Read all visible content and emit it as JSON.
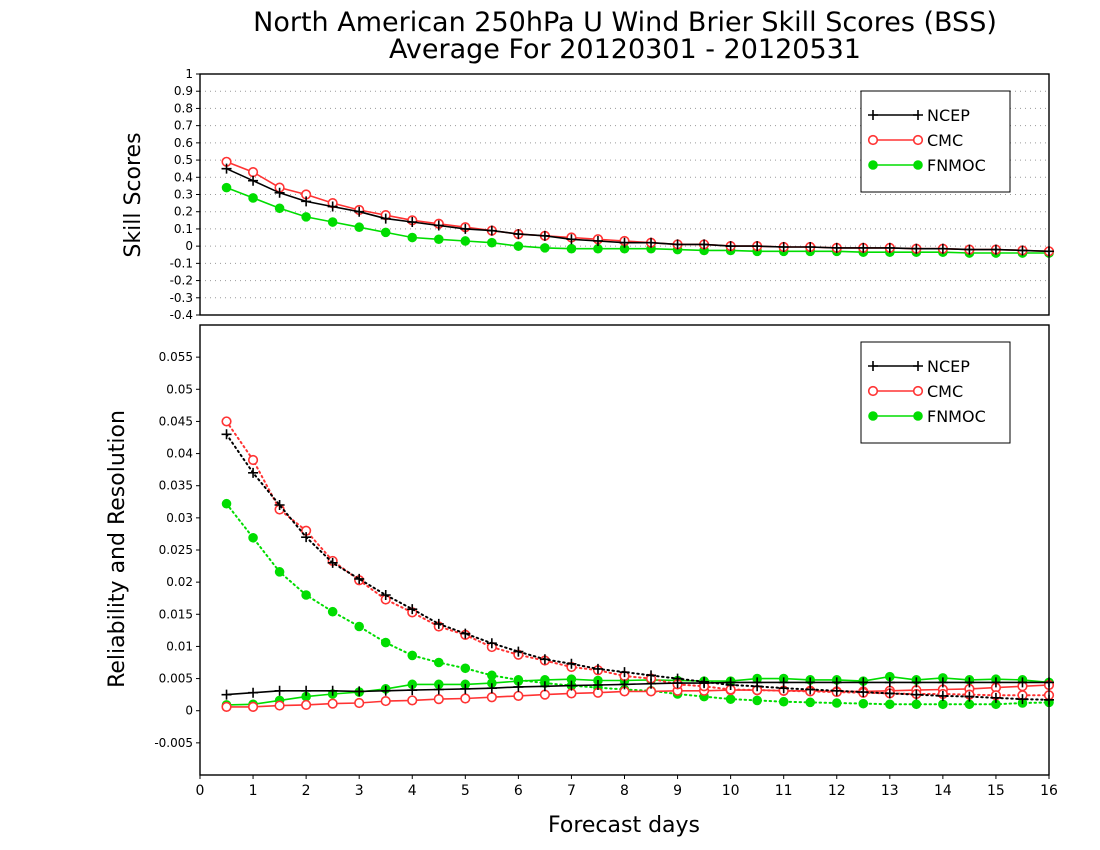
{
  "chart_data": {
    "title": "North American 250hPa U Wind Brier Skill Scores (BSS)",
    "subtitle": "Average For 20120301 - 20120531",
    "xlabel": "Forecast days",
    "x_ticks": [
      "0",
      "1",
      "2",
      "3",
      "4",
      "5",
      "6",
      "7",
      "8",
      "9",
      "10",
      "11",
      "12",
      "13",
      "14",
      "15",
      "16"
    ],
    "xlim": [
      0,
      16
    ],
    "colors": {
      "NCEP": "#000000",
      "CMC": "#ff3333",
      "FNMOC": "#00dd00",
      "CMC_marker_fill": "#ffffff"
    },
    "panels": [
      {
        "type": "line",
        "ylabel": "Skill Scores",
        "ylim": [
          -0.4,
          1
        ],
        "y_ticks": [
          "-0.4",
          "-0.3",
          "-0.2",
          "-0.1",
          "0",
          "0.1",
          "0.2",
          "0.3",
          "0.4",
          "0.5",
          "0.6",
          "0.7",
          "0.8",
          "0.9",
          "1"
        ],
        "grid": true,
        "legend_position": "top-right",
        "x": [
          0.5,
          1,
          1.5,
          2,
          2.5,
          3,
          3.5,
          4,
          4.5,
          5,
          5.5,
          6,
          6.5,
          7,
          7.5,
          8,
          8.5,
          9,
          9.5,
          10,
          10.5,
          11,
          11.5,
          12,
          12.5,
          13,
          13.5,
          14,
          14.5,
          15,
          15.5,
          16
        ],
        "series": [
          {
            "name": "NCEP",
            "marker": "plus",
            "linestyle": "solid",
            "values": [
              0.45,
              0.38,
              0.31,
              0.26,
              0.23,
              0.2,
              0.16,
              0.14,
              0.12,
              0.1,
              0.09,
              0.07,
              0.06,
              0.04,
              0.03,
              0.02,
              0.02,
              0.01,
              0.01,
              0.0,
              0.0,
              -0.005,
              -0.005,
              -0.01,
              -0.01,
              -0.01,
              -0.015,
              -0.015,
              -0.02,
              -0.02,
              -0.025,
              -0.03
            ]
          },
          {
            "name": "CMC",
            "marker": "open-circle",
            "linestyle": "solid",
            "values": [
              0.49,
              0.43,
              0.34,
              0.3,
              0.25,
              0.21,
              0.18,
              0.15,
              0.13,
              0.11,
              0.09,
              0.07,
              0.06,
              0.05,
              0.04,
              0.03,
              0.02,
              0.01,
              0.01,
              0.0,
              0.0,
              -0.005,
              -0.005,
              -0.01,
              -0.01,
              -0.01,
              -0.015,
              -0.015,
              -0.02,
              -0.02,
              -0.025,
              -0.03
            ]
          },
          {
            "name": "FNMOC",
            "marker": "filled-circle",
            "linestyle": "solid",
            "values": [
              0.34,
              0.28,
              0.22,
              0.17,
              0.14,
              0.11,
              0.08,
              0.05,
              0.04,
              0.03,
              0.02,
              0.0,
              -0.01,
              -0.015,
              -0.015,
              -0.015,
              -0.015,
              -0.02,
              -0.025,
              -0.025,
              -0.03,
              -0.03,
              -0.03,
              -0.03,
              -0.035,
              -0.035,
              -0.035,
              -0.035,
              -0.04,
              -0.04,
              -0.04,
              -0.04
            ]
          }
        ]
      },
      {
        "type": "line",
        "ylabel": "Reliability and Resolution",
        "ylim": [
          -0.01,
          0.06
        ],
        "y_ticks": [
          "-0.005",
          "0",
          "0.005",
          "0.01",
          "0.015",
          "0.02",
          "0.025",
          "0.03",
          "0.035",
          "0.04",
          "0.045",
          "0.05",
          "0.055"
        ],
        "grid": false,
        "legend_position": "top-right",
        "x": [
          0.5,
          1,
          1.5,
          2,
          2.5,
          3,
          3.5,
          4,
          4.5,
          5,
          5.5,
          6,
          6.5,
          7,
          7.5,
          8,
          8.5,
          9,
          9.5,
          10,
          10.5,
          11,
          11.5,
          12,
          12.5,
          13,
          13.5,
          14,
          14.5,
          15,
          15.5,
          16
        ],
        "series": [
          {
            "name": "NCEP",
            "component": "reliability",
            "marker": "plus",
            "linestyle": "solid",
            "values": [
              0.0025,
              0.0028,
              0.0031,
              0.0031,
              0.0031,
              0.003,
              0.0031,
              0.0032,
              0.0033,
              0.0034,
              0.0035,
              0.0037,
              0.0038,
              0.0039,
              0.004,
              0.0041,
              0.0042,
              0.0043,
              0.0043,
              0.0044,
              0.0044,
              0.0044,
              0.0044,
              0.0044,
              0.0044,
              0.0044,
              0.0044,
              0.0044,
              0.0044,
              0.0044,
              0.0044,
              0.0044
            ]
          },
          {
            "name": "NCEP",
            "component": "resolution",
            "marker": "plus",
            "linestyle": "dotted",
            "values": [
              0.043,
              0.037,
              0.032,
              0.027,
              0.023,
              0.0205,
              0.018,
              0.0158,
              0.0135,
              0.012,
              0.0105,
              0.0092,
              0.008,
              0.0073,
              0.0065,
              0.006,
              0.0055,
              0.005,
              0.0045,
              0.004,
              0.0038,
              0.0035,
              0.0033,
              0.0031,
              0.0029,
              0.0027,
              0.0025,
              0.0023,
              0.0022,
              0.002,
              0.0018,
              0.0017
            ]
          },
          {
            "name": "CMC",
            "component": "reliability",
            "marker": "open-circle",
            "linestyle": "solid",
            "values": [
              0.0006,
              0.0006,
              0.0008,
              0.0009,
              0.0011,
              0.0012,
              0.0015,
              0.0016,
              0.0018,
              0.0019,
              0.0021,
              0.0023,
              0.0025,
              0.0027,
              0.0028,
              0.003,
              0.003,
              0.0031,
              0.0031,
              0.0032,
              0.0032,
              0.0031,
              0.0031,
              0.003,
              0.003,
              0.0031,
              0.0032,
              0.0033,
              0.0034,
              0.0036,
              0.0038,
              0.004
            ]
          },
          {
            "name": "CMC",
            "component": "resolution",
            "marker": "open-circle",
            "linestyle": "dotted",
            "values": [
              0.045,
              0.039,
              0.0313,
              0.028,
              0.0233,
              0.0203,
              0.0173,
              0.0153,
              0.0131,
              0.0118,
              0.0099,
              0.0087,
              0.0078,
              0.0068,
              0.0063,
              0.0054,
              0.005,
              0.0041,
              0.0038,
              0.0033,
              0.0032,
              0.0031,
              0.003,
              0.0029,
              0.0028,
              0.0027,
              0.0026,
              0.0026,
              0.0025,
              0.0024,
              0.0024,
              0.0024
            ]
          },
          {
            "name": "FNMOC",
            "component": "reliability",
            "marker": "filled-circle",
            "linestyle": "solid",
            "values": [
              0.0009,
              0.001,
              0.0016,
              0.0022,
              0.0026,
              0.0029,
              0.0034,
              0.0041,
              0.0041,
              0.0041,
              0.0043,
              0.0046,
              0.0048,
              0.0049,
              0.0047,
              0.0047,
              0.0048,
              0.0047,
              0.0046,
              0.0046,
              0.005,
              0.005,
              0.0048,
              0.0048,
              0.0046,
              0.0053,
              0.0048,
              0.0051,
              0.0048,
              0.0049,
              0.0048,
              0.0044
            ]
          },
          {
            "name": "FNMOC",
            "component": "resolution",
            "marker": "filled-circle",
            "linestyle": "dotted",
            "values": [
              0.0322,
              0.0269,
              0.0216,
              0.018,
              0.0154,
              0.0131,
              0.0106,
              0.0086,
              0.0075,
              0.0066,
              0.0055,
              0.0048,
              0.0043,
              0.0039,
              0.0036,
              0.0033,
              0.0031,
              0.0026,
              0.0022,
              0.0018,
              0.0016,
              0.0014,
              0.0013,
              0.0012,
              0.0011,
              0.001,
              0.001,
              0.001,
              0.001,
              0.001,
              0.0012,
              0.0013
            ]
          }
        ]
      }
    ],
    "legend": [
      {
        "name": "NCEP",
        "marker": "plus"
      },
      {
        "name": "CMC",
        "marker": "open-circle"
      },
      {
        "name": "FNMOC",
        "marker": "filled-circle"
      }
    ]
  }
}
